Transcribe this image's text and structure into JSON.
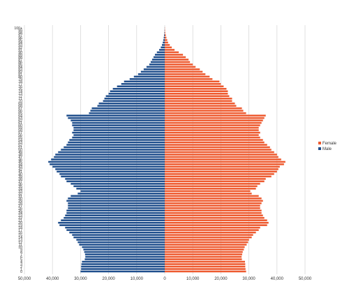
{
  "chart_data": {
    "type": "bar",
    "orientation": "horizontal",
    "categories": [
      "0",
      "1",
      "2",
      "3",
      "4",
      "5",
      "6",
      "7",
      "8",
      "9",
      "10",
      "11",
      "12",
      "13",
      "14",
      "15",
      "16",
      "17",
      "18",
      "19",
      "20",
      "21",
      "22",
      "23",
      "24",
      "25",
      "26",
      "27",
      "28",
      "29",
      "30",
      "31",
      "32",
      "33",
      "34",
      "35",
      "36",
      "37",
      "38",
      "39",
      "40",
      "41",
      "42",
      "43",
      "44",
      "45",
      "46",
      "47",
      "48",
      "49",
      "50",
      "51",
      "52",
      "53",
      "54",
      "55",
      "56",
      "57",
      "58",
      "59",
      "60",
      "61",
      "62",
      "63",
      "64",
      "65",
      "66",
      "67",
      "68",
      "69",
      "70",
      "71",
      "72",
      "73",
      "74",
      "75",
      "76",
      "77",
      "78",
      "79",
      "80",
      "81",
      "82",
      "83",
      "84",
      "85",
      "86",
      "87",
      "88",
      "89",
      "90",
      "91",
      "92",
      "93",
      "94",
      "95",
      "96",
      "97",
      "98",
      "99",
      "100+"
    ],
    "series": [
      {
        "name": "Female",
        "color": "#ee5a2f",
        "values": [
          29000,
          28800,
          28700,
          28700,
          28600,
          27500,
          27400,
          27600,
          27800,
          28200,
          28500,
          29200,
          29700,
          30000,
          31000,
          31500,
          32500,
          33500,
          34000,
          36500,
          37000,
          36500,
          35500,
          35000,
          34500,
          34500,
          34000,
          34000,
          34500,
          35000,
          34500,
          33500,
          31000,
          30500,
          32500,
          33000,
          34000,
          35500,
          36000,
          38000,
          39000,
          40000,
          40500,
          41000,
          42500,
          43000,
          41500,
          40500,
          40000,
          39000,
          38000,
          37500,
          36500,
          35500,
          35000,
          34000,
          33500,
          34000,
          33500,
          33500,
          34000,
          34500,
          35000,
          35500,
          36000,
          29000,
          28000,
          27500,
          25500,
          25000,
          24000,
          24000,
          23000,
          22500,
          22500,
          22000,
          21000,
          20000,
          19500,
          17000,
          16000,
          14500,
          13500,
          12500,
          11000,
          10000,
          9000,
          8500,
          7500,
          6500,
          5000,
          3500,
          2500,
          1800,
          1200,
          900,
          600,
          400,
          200,
          120,
          60
        ]
      },
      {
        "name": "Male",
        "color": "#1f4e8c",
        "values": [
          30000,
          29800,
          29800,
          29700,
          29500,
          28500,
          28300,
          28400,
          28700,
          29000,
          29500,
          30500,
          31000,
          31500,
          32500,
          33000,
          34000,
          35000,
          35500,
          37500,
          38000,
          37000,
          36000,
          35500,
          35000,
          35000,
          34500,
          34500,
          34500,
          35000,
          34500,
          33500,
          31000,
          30000,
          31500,
          32500,
          33500,
          35000,
          35500,
          37000,
          37500,
          38500,
          39000,
          40000,
          41000,
          41500,
          40500,
          39500,
          39000,
          38000,
          37000,
          36000,
          35000,
          34500,
          34000,
          33000,
          32500,
          33000,
          32500,
          32500,
          33000,
          33000,
          33500,
          34500,
          35000,
          27000,
          26500,
          26000,
          24000,
          23500,
          22000,
          21500,
          21000,
          20000,
          19500,
          18500,
          17000,
          15500,
          14500,
          12500,
          11000,
          9500,
          8500,
          7500,
          6500,
          5500,
          5000,
          4500,
          4000,
          3500,
          2800,
          2000,
          1400,
          1000,
          700,
          500,
          350,
          250,
          120,
          60,
          30
        ]
      }
    ],
    "x_ticks": [
      "50,000",
      "40,000",
      "30,000",
      "20,000",
      "10,000",
      "0",
      "10,000",
      "20,000",
      "30,000",
      "40,000",
      "50,000"
    ],
    "y_tick_labels": [
      "0",
      "1",
      "2",
      "3",
      "4",
      "5",
      "6",
      "7",
      "8",
      "9",
      "10",
      "11",
      "12",
      "13",
      "14",
      "15",
      "16",
      "17",
      "18",
      "19",
      "20",
      "21",
      "22",
      "23",
      "24",
      "25",
      "26",
      "27",
      "28",
      "29",
      "30",
      "31",
      "32",
      "33",
      "34",
      "35",
      "36",
      "37",
      "38",
      "39",
      "40",
      "41",
      "42",
      "43",
      "44",
      "45",
      "46",
      "47",
      "48",
      "49",
      "50",
      "51",
      "52",
      "53",
      "54",
      "55",
      "56",
      "57",
      "58",
      "59",
      "60",
      "61",
      "62",
      "63",
      "64",
      "65",
      "66",
      "67",
      "68",
      "69",
      "70",
      "71",
      "72",
      "73",
      "74",
      "75",
      "76",
      "77",
      "78",
      "79",
      "80",
      "81",
      "82",
      "83",
      "84",
      "85",
      "86",
      "87",
      "88",
      "89",
      "90",
      "91",
      "92",
      "93",
      "94",
      "95",
      "96",
      "97",
      "98",
      "99",
      "100+"
    ],
    "xlim": [
      -50000,
      50000
    ],
    "grid": "vertical",
    "legend_position": "right",
    "legend": [
      "Female",
      "Male"
    ],
    "title": "",
    "xlabel": "",
    "ylabel": ""
  }
}
